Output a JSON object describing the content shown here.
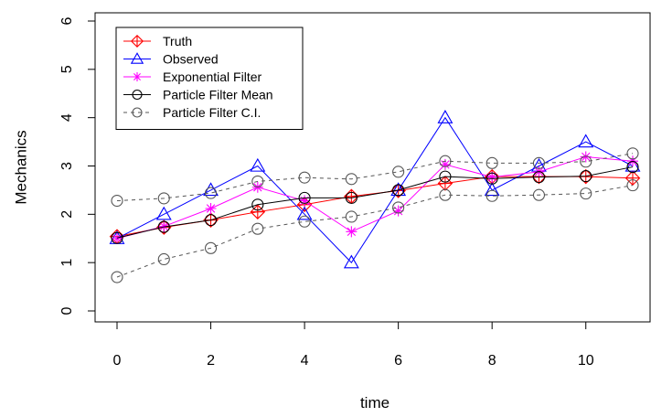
{
  "chart_data": {
    "type": "line",
    "title": "",
    "xlabel": "time",
    "ylabel": "Mechanics",
    "xlim": [
      0,
      11
    ],
    "ylim": [
      0,
      6
    ],
    "xticks": [
      0,
      2,
      4,
      6,
      8,
      10
    ],
    "yticks": [
      0,
      1,
      2,
      3,
      4,
      5,
      6
    ],
    "grid": false,
    "legend_position": "top-left",
    "x": [
      0,
      1,
      2,
      3,
      4,
      5,
      6,
      7,
      8,
      9,
      10,
      11
    ],
    "series": [
      {
        "name": "Truth",
        "color": "#ff0000",
        "marker": "diamond-plus",
        "line": "solid",
        "values": [
          1.54,
          1.73,
          1.88,
          2.05,
          2.2,
          2.37,
          2.49,
          2.64,
          2.78,
          2.78,
          2.78,
          2.75
        ]
      },
      {
        "name": "Observed",
        "color": "#0000ff",
        "marker": "triangle",
        "line": "solid",
        "values": [
          1.5,
          2.0,
          2.5,
          3.0,
          2.0,
          1.0,
          2.5,
          4.0,
          2.5,
          3.0,
          3.5,
          3.0
        ]
      },
      {
        "name": "Exponential Filter",
        "color": "#ff00ff",
        "marker": "asterisk",
        "line": "solid",
        "values": [
          1.5,
          1.75,
          2.12,
          2.56,
          2.28,
          1.64,
          2.07,
          3.03,
          2.77,
          2.88,
          3.19,
          3.1
        ]
      },
      {
        "name": "Particle Filter Mean",
        "color": "#000000",
        "marker": "circle",
        "line": "solid",
        "values": [
          1.51,
          1.74,
          1.88,
          2.2,
          2.34,
          2.34,
          2.5,
          2.78,
          2.74,
          2.77,
          2.79,
          2.98
        ]
      },
      {
        "name": "Particle Filter C.I.",
        "color": "#555555",
        "marker": "circle",
        "line": "dashed",
        "values": [
          2.28,
          2.33,
          2.44,
          2.68,
          2.76,
          2.73,
          2.88,
          3.1,
          3.06,
          3.06,
          3.09,
          3.26
        ]
      },
      {
        "name": "",
        "color": "#555555",
        "marker": "circle",
        "line": "dashed",
        "legend": false,
        "values": [
          0.7,
          1.07,
          1.3,
          1.7,
          1.85,
          1.95,
          2.14,
          2.4,
          2.38,
          2.4,
          2.43,
          2.6
        ]
      }
    ]
  }
}
